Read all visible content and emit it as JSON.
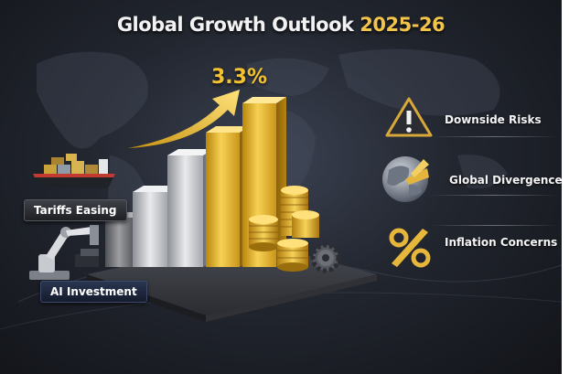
{
  "title": {
    "main": "Global Growth Outlook",
    "year": "2025-26"
  },
  "growth_value": "3.3%",
  "left_badges": {
    "tariffs": "Tariffs Easing",
    "ai": "AI Investment"
  },
  "right_items": [
    {
      "label": "Downside Risks",
      "icon": "warning-triangle-icon"
    },
    {
      "label": "Global Divergence",
      "icon": "globe-icon"
    },
    {
      "label": "Inflation Concerns",
      "icon": "percent-icon"
    }
  ],
  "colors": {
    "gold": "#f2c44a",
    "silver": "#c9cbcf",
    "background": "#1b1e25"
  }
}
